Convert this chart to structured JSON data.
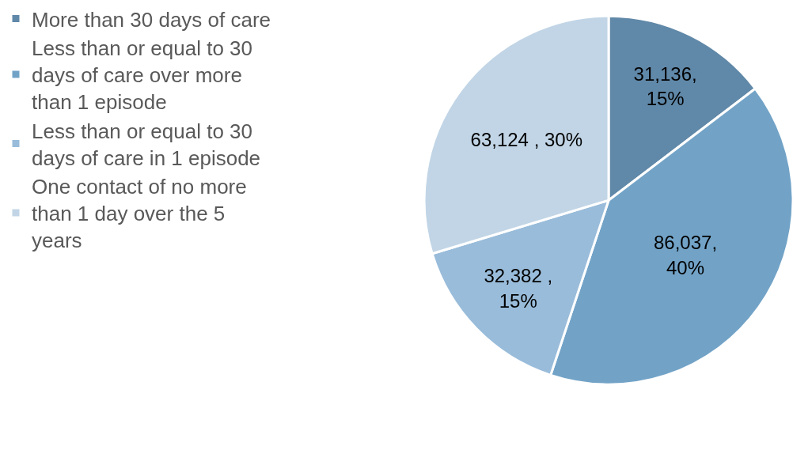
{
  "chart_data": {
    "type": "pie",
    "categories": [
      "More than 30 days of care",
      "Less than or equal to 30 days of care over more than 1 episode",
      "Less than or equal to 30 days of care in 1 episode",
      "One contact of no more than 1 day over the 5 years"
    ],
    "values": [
      31136,
      86037,
      32382,
      63124
    ],
    "value_labels": [
      "31,136,\n15%",
      "86,037,\n40%",
      "32,382 ,\n15%",
      "63,124 , 30%"
    ],
    "colors": [
      "#6088a8",
      "#72a3c7",
      "#99bcda",
      "#c1d5e6"
    ],
    "legend": "left"
  }
}
